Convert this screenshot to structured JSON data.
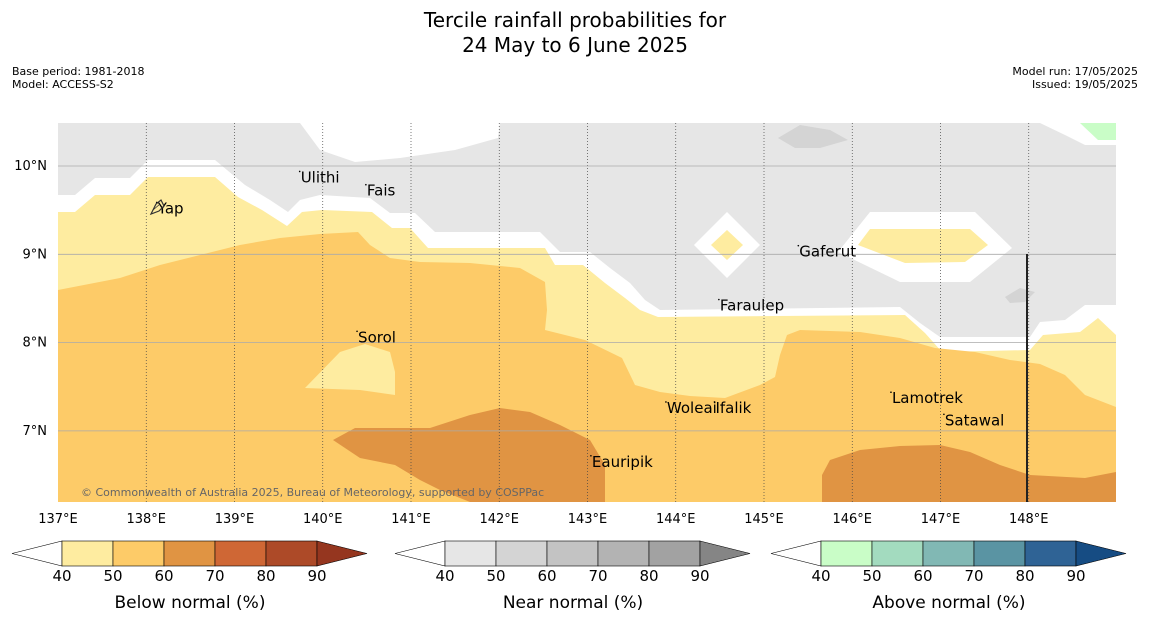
{
  "title_line1": "Tercile rainfall probabilities for",
  "title_line2": "24 May to 6 June 2025",
  "meta_left": {
    "base_period": "Base period: 1981-2018",
    "model": "Model: ACCESS-S2"
  },
  "meta_right": {
    "model_run": "Model run: 17/05/2025",
    "issued": "Issued: 19/05/2025"
  },
  "map": {
    "lon_labels": [
      "137°E",
      "138°E",
      "139°E",
      "140°E",
      "141°E",
      "142°E",
      "143°E",
      "144°E",
      "145°E",
      "146°E",
      "147°E",
      "148°E"
    ],
    "lat_labels": [
      "10°N",
      "9°N",
      "8°N",
      "7°N"
    ],
    "places": [
      {
        "name": "Ulithi",
        "lon": 139.75,
        "lat": 9.87
      },
      {
        "name": "Fais",
        "lon": 140.5,
        "lat": 9.72
      },
      {
        "name": "Yap",
        "lon": 138.13,
        "lat": 9.52
      },
      {
        "name": "Gaferut",
        "lon": 145.4,
        "lat": 9.03
      },
      {
        "name": "Faraulep",
        "lon": 144.5,
        "lat": 8.42
      },
      {
        "name": "Sorol",
        "lon": 140.4,
        "lat": 8.06
      },
      {
        "name": "Lamotrek",
        "lon": 146.45,
        "lat": 7.37
      },
      {
        "name": "Woleai",
        "lon": 143.9,
        "lat": 7.26
      },
      {
        "name": "Ifalik",
        "lon": 144.45,
        "lat": 7.26
      },
      {
        "name": "Satawal",
        "lon": 147.05,
        "lat": 7.12
      },
      {
        "name": "Eauripik",
        "lon": 143.05,
        "lat": 6.65
      }
    ],
    "copyright": "© Commonwealth of Australia 2025, Bureau of Meteorology, supported by COSPPac"
  },
  "colorbars": [
    {
      "label": "Below normal (%)",
      "colors": [
        "#ffffff",
        "#feeca0",
        "#fdcb68",
        "#e09443",
        "#cf6735",
        "#ad4a28",
        "#95361f"
      ],
      "ticks": [
        "40",
        "50",
        "60",
        "70",
        "80",
        "90"
      ]
    },
    {
      "label": "Near normal (%)",
      "colors": [
        "#ffffff",
        "#e6e6e6",
        "#d4d4d4",
        "#c3c3c3",
        "#b3b3b3",
        "#a2a2a2",
        "#858585"
      ],
      "ticks": [
        "40",
        "50",
        "60",
        "70",
        "80",
        "90"
      ]
    },
    {
      "label": "Above normal (%)",
      "colors": [
        "#ffffff",
        "#c9fdc7",
        "#a3dbbf",
        "#81b8b4",
        "#5a94a3",
        "#2f6395",
        "#164c83"
      ],
      "ticks": [
        "40",
        "50",
        "60",
        "70",
        "80",
        "90"
      ]
    }
  ]
}
